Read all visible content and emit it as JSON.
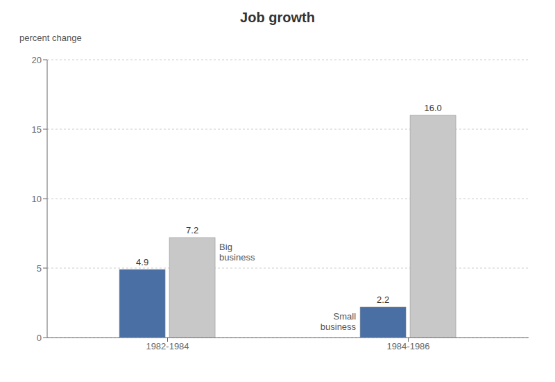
{
  "chart_data": {
    "type": "bar",
    "title": "Job growth",
    "y_label": "percent change",
    "categories": [
      "1982-1984",
      "1984-1986"
    ],
    "series": [
      {
        "name": "Small\nbusiness",
        "color": "#4a6fa5",
        "values": [
          4.9,
          2.2
        ],
        "value_labels": [
          "4.9",
          "2.2"
        ]
      },
      {
        "name": "Big\nbusiness",
        "color": "#c8c8c8",
        "values": [
          7.2,
          16.0
        ],
        "value_labels": [
          "7.2",
          "16.0"
        ]
      }
    ],
    "ylim": [
      0,
      20
    ],
    "yticks": [
      0,
      5,
      10,
      15,
      20
    ],
    "grid": true,
    "data_labels": true
  }
}
